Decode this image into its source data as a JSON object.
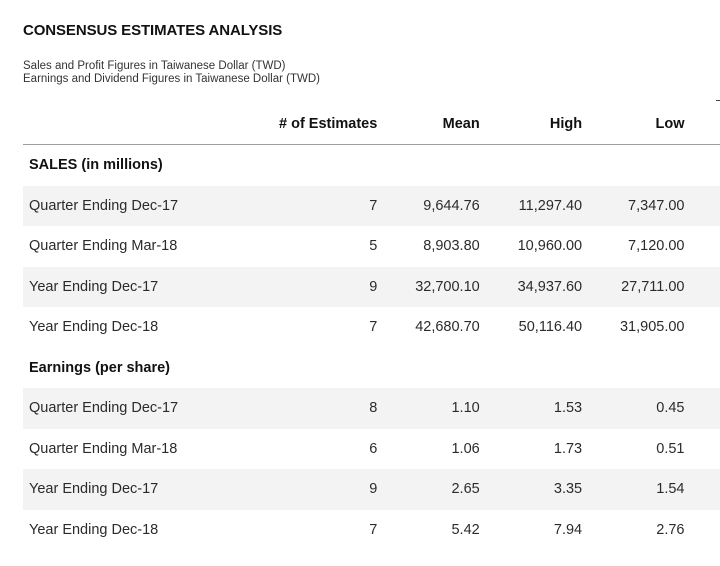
{
  "title": "CONSENSUS ESTIMATES ANALYSIS",
  "subtitles": [
    "Sales and Profit Figures in Taiwanese Dollar (TWD)",
    "Earnings and Dividend Figures in Taiwanese Dollar (TWD)"
  ],
  "columns": {
    "label": "",
    "estimates": "# of Estimates",
    "mean": "Mean",
    "high": "High",
    "low": "Low"
  },
  "sections": [
    {
      "title": "SALES (in millions)",
      "rows": [
        {
          "label": "Quarter Ending Dec-17",
          "estimates": "7",
          "mean": "9,644.76",
          "high": "11,297.40",
          "low": "7,347.00"
        },
        {
          "label": "Quarter Ending Mar-18",
          "estimates": "5",
          "mean": "8,903.80",
          "high": "10,960.00",
          "low": "7,120.00"
        },
        {
          "label": "Year Ending Dec-17",
          "estimates": "9",
          "mean": "32,700.10",
          "high": "34,937.60",
          "low": "27,711.00"
        },
        {
          "label": "Year Ending Dec-18",
          "estimates": "7",
          "mean": "42,680.70",
          "high": "50,116.40",
          "low": "31,905.00"
        }
      ]
    },
    {
      "title": "Earnings (per share)",
      "rows": [
        {
          "label": "Quarter Ending Dec-17",
          "estimates": "8",
          "mean": "1.10",
          "high": "1.53",
          "low": "0.45"
        },
        {
          "label": "Quarter Ending Mar-18",
          "estimates": "6",
          "mean": "1.06",
          "high": "1.73",
          "low": "0.51"
        },
        {
          "label": "Year Ending Dec-17",
          "estimates": "9",
          "mean": "2.65",
          "high": "3.35",
          "low": "1.54"
        },
        {
          "label": "Year Ending Dec-18",
          "estimates": "7",
          "mean": "5.42",
          "high": "7.94",
          "low": "2.76"
        }
      ]
    }
  ]
}
